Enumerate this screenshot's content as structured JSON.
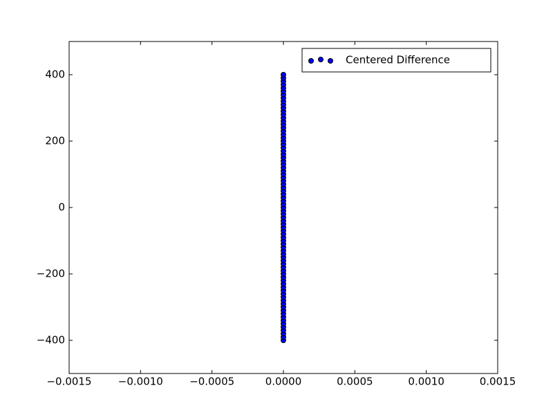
{
  "chart_data": {
    "type": "scatter",
    "series": [
      {
        "name": "Centered Difference",
        "color": "#0000ff",
        "edgecolor": "#000000",
        "x": [
          0,
          0,
          0,
          0,
          0,
          0,
          0,
          0,
          0,
          0,
          0,
          0,
          0,
          0,
          0,
          0,
          0,
          0,
          0,
          0,
          0,
          0,
          0,
          0,
          0,
          0,
          0,
          0,
          0,
          0,
          0,
          0,
          0,
          0,
          0,
          0,
          0,
          0,
          0,
          0,
          0,
          0,
          0,
          0,
          0,
          0,
          0,
          0,
          0,
          0,
          0,
          0,
          0,
          0,
          0,
          0,
          0,
          0,
          0,
          0,
          0,
          0,
          0,
          0,
          0,
          0,
          0,
          0,
          0,
          0,
          0,
          0,
          0,
          0,
          0,
          0,
          0,
          0,
          0,
          0,
          0
        ],
        "values": [
          -400,
          -390,
          -380,
          -370,
          -360,
          -350,
          -340,
          -330,
          -320,
          -310,
          -300,
          -290,
          -280,
          -270,
          -260,
          -250,
          -240,
          -230,
          -220,
          -210,
          -200,
          -190,
          -180,
          -170,
          -160,
          -150,
          -140,
          -130,
          -120,
          -110,
          -100,
          -90,
          -80,
          -70,
          -60,
          -50,
          -40,
          -30,
          -20,
          -10,
          0,
          10,
          20,
          30,
          40,
          50,
          60,
          70,
          80,
          90,
          100,
          110,
          120,
          130,
          140,
          150,
          160,
          170,
          180,
          190,
          200,
          210,
          220,
          230,
          240,
          250,
          260,
          270,
          280,
          290,
          300,
          310,
          320,
          330,
          340,
          350,
          360,
          370,
          380,
          390,
          400
        ]
      }
    ],
    "xlim": [
      -0.0015,
      0.0015
    ],
    "ylim": [
      -500,
      500
    ],
    "xticks": [
      {
        "value": -0.0015,
        "label": "−0.0015"
      },
      {
        "value": -0.001,
        "label": "−0.0010"
      },
      {
        "value": -0.0005,
        "label": "−0.0005"
      },
      {
        "value": 0,
        "label": "0.0000"
      },
      {
        "value": 0.0005,
        "label": "0.0005"
      },
      {
        "value": 0.001,
        "label": "0.0010"
      },
      {
        "value": 0.0015,
        "label": "0.0015"
      }
    ],
    "yticks": [
      {
        "value": -400,
        "label": "−400"
      },
      {
        "value": -200,
        "label": "−200"
      },
      0,
      200,
      400
    ],
    "legend": "upper right",
    "grid": false
  }
}
